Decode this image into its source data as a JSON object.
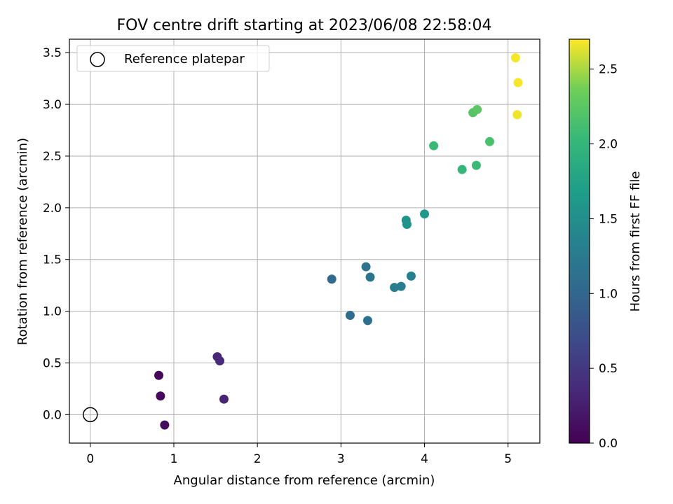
{
  "chart_data": {
    "type": "scatter",
    "title": "FOV centre drift starting at 2023/06/08 22:58:04",
    "xlabel": "Angular distance from reference (arcmin)",
    "ylabel": "Rotation from reference (arcmin)",
    "xlim": [
      -0.25,
      5.38
    ],
    "ylim": [
      -0.275,
      3.63
    ],
    "xticks": [
      0,
      1,
      2,
      3,
      4,
      5
    ],
    "xtick_labels": [
      "0",
      "1",
      "2",
      "3",
      "4",
      "5"
    ],
    "yticks": [
      0.0,
      0.5,
      1.0,
      1.5,
      2.0,
      2.5,
      3.0,
      3.5
    ],
    "ytick_labels": [
      "0.0",
      "0.5",
      "1.0",
      "1.5",
      "2.0",
      "2.5",
      "3.0",
      "3.5"
    ],
    "grid": true,
    "legend": {
      "placement": "upper-left",
      "entries": [
        "Reference platepar"
      ]
    },
    "colorbar": {
      "label": "Hours from first FF file",
      "colormap": "viridis",
      "range": [
        0.0,
        2.7
      ],
      "ticks": [
        0.0,
        0.5,
        1.0,
        1.5,
        2.0,
        2.5
      ],
      "tick_labels": [
        "0.0",
        "0.5",
        "1.0",
        "1.5",
        "2.0",
        "2.5"
      ]
    },
    "reference_point": {
      "name": "Reference platepar",
      "x": 0.0,
      "y": 0.0
    },
    "series": [
      {
        "points": [
          {
            "x": 0.82,
            "y": 0.38,
            "c": 0.05
          },
          {
            "x": 0.84,
            "y": 0.18,
            "c": 0.08
          },
          {
            "x": 0.89,
            "y": -0.1,
            "c": 0.1
          },
          {
            "x": 1.52,
            "y": 0.56,
            "c": 0.33
          },
          {
            "x": 1.55,
            "y": 0.52,
            "c": 0.36
          },
          {
            "x": 1.6,
            "y": 0.15,
            "c": 0.3
          },
          {
            "x": 2.89,
            "y": 1.31,
            "c": 1.05
          },
          {
            "x": 3.11,
            "y": 0.96,
            "c": 1.08
          },
          {
            "x": 3.32,
            "y": 0.91,
            "c": 1.12
          },
          {
            "x": 3.3,
            "y": 1.43,
            "c": 1.15
          },
          {
            "x": 3.35,
            "y": 1.33,
            "c": 1.17
          },
          {
            "x": 3.64,
            "y": 1.23,
            "c": 1.28
          },
          {
            "x": 3.72,
            "y": 1.24,
            "c": 1.3
          },
          {
            "x": 3.84,
            "y": 1.34,
            "c": 1.32
          },
          {
            "x": 3.78,
            "y": 1.88,
            "c": 1.55
          },
          {
            "x": 3.79,
            "y": 1.84,
            "c": 1.57
          },
          {
            "x": 4.0,
            "y": 1.94,
            "c": 1.62
          },
          {
            "x": 4.11,
            "y": 2.6,
            "c": 2.05
          },
          {
            "x": 4.45,
            "y": 2.37,
            "c": 2.03
          },
          {
            "x": 4.62,
            "y": 2.41,
            "c": 2.06
          },
          {
            "x": 4.78,
            "y": 2.64,
            "c": 2.15
          },
          {
            "x": 4.58,
            "y": 2.92,
            "c": 2.22
          },
          {
            "x": 4.63,
            "y": 2.95,
            "c": 2.25
          },
          {
            "x": 5.09,
            "y": 3.45,
            "c": 2.68
          },
          {
            "x": 5.12,
            "y": 3.21,
            "c": 2.68
          },
          {
            "x": 5.11,
            "y": 2.9,
            "c": 2.67
          }
        ]
      }
    ]
  }
}
